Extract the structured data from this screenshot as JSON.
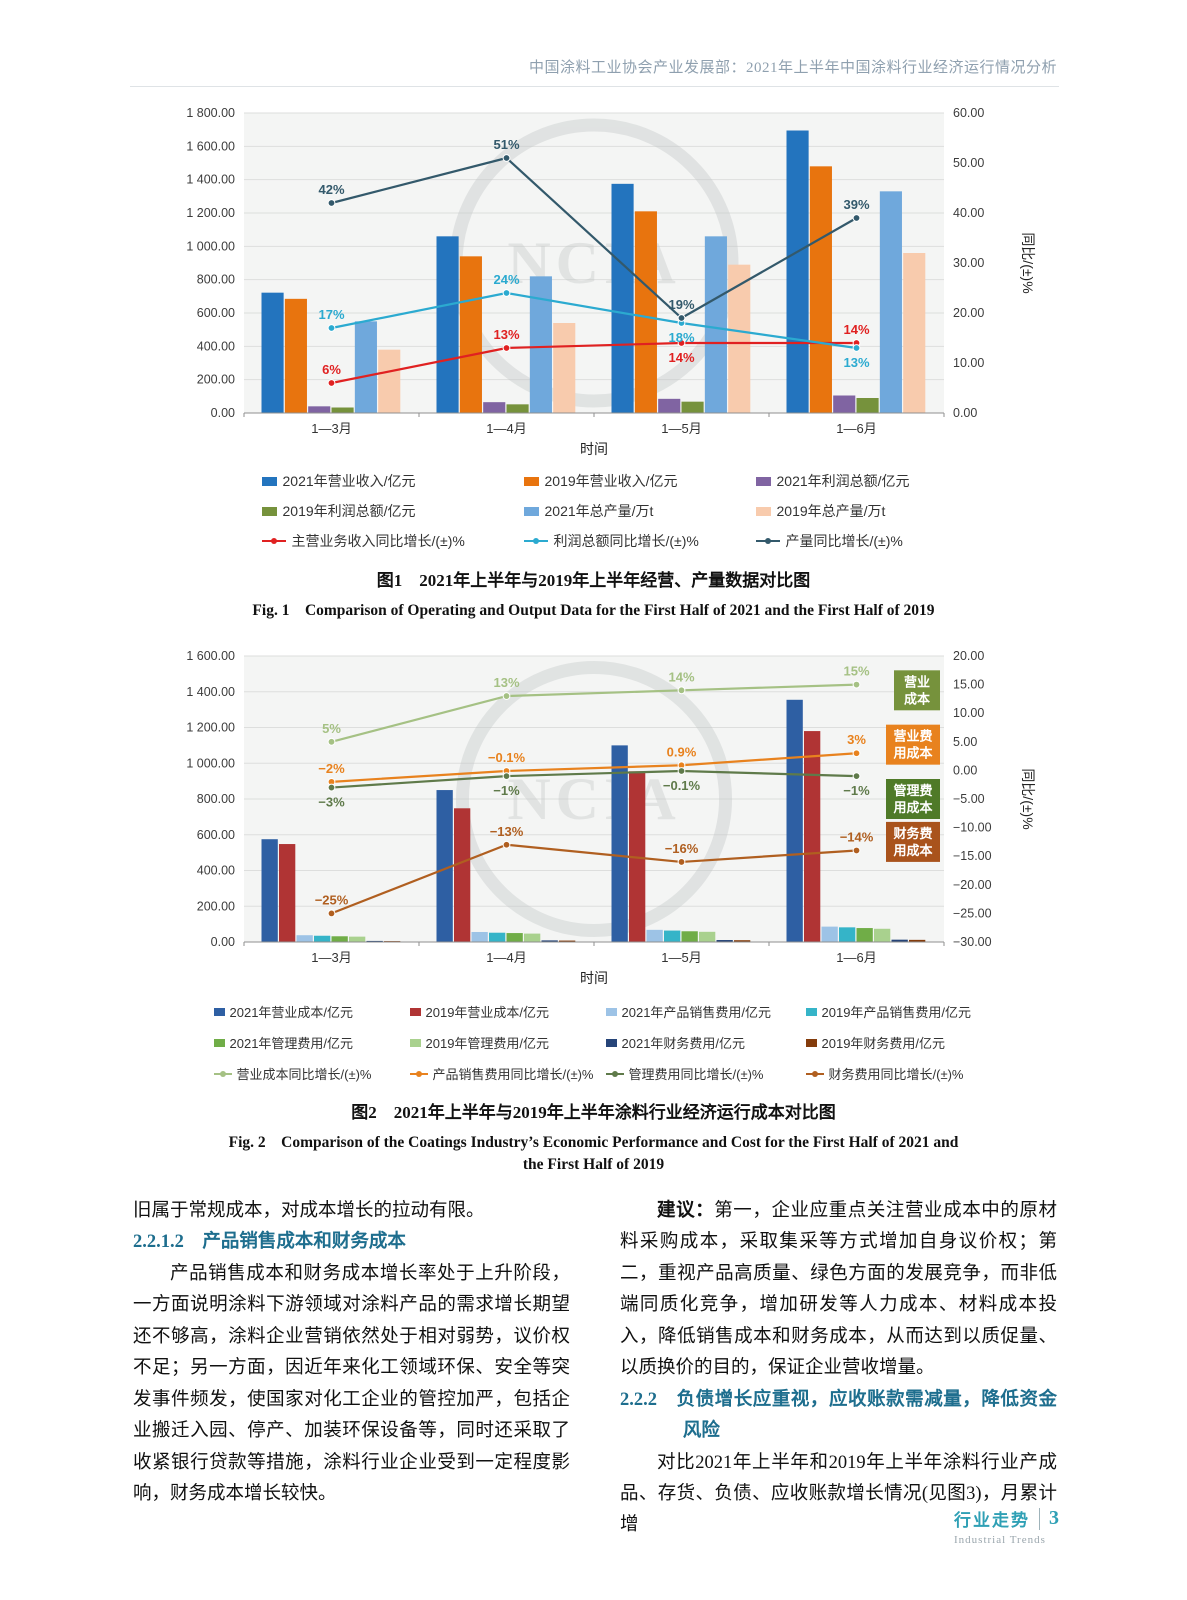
{
  "header": {
    "title": "中国涂料工业协会产业发展部：2021年上半年中国涂料行业经济运行情况分析"
  },
  "fig1": {
    "caption_zh": "图1　2021年上半年与2019年上半年经营、产量数据对比图",
    "caption_en": "Fig. 1　Comparison of Operating and Output Data for the First Half of 2021 and the First Half of 2019"
  },
  "fig2": {
    "caption_zh": "图2　2021年上半年与2019年上半年涂料行业经济运行成本对比图",
    "caption_en_line1": "Fig. 2　Comparison of the Coatings Industry’s Economic Performance and Cost for the First Half of 2021 and",
    "caption_en_line2": "the First Half of 2019"
  },
  "chart_data": [
    {
      "type": "combo-bar-line",
      "title": "图1 2021年上半年与2019年上半年经营、产量数据对比图",
      "categories": [
        "1—3月",
        "1—4月",
        "1—5月",
        "1—6月"
      ],
      "x_axis_label": "时间",
      "right_axis_label": "同比/(±)%",
      "left_axis": {
        "min": 0,
        "max": 1800,
        "step": 200
      },
      "right_axis": {
        "min": 0,
        "max": 60,
        "step": 10
      },
      "grid": true,
      "legend_position": "bottom",
      "watermark": "NCIA",
      "bar_series": [
        {
          "name": "2021年营业收入/亿元",
          "color": "#2374be",
          "values": [
            722,
            1060,
            1375,
            1695
          ]
        },
        {
          "name": "2019年营业收入/亿元",
          "color": "#e8740e",
          "values": [
            685,
            940,
            1210,
            1480
          ]
        },
        {
          "name": "2021年利润总额/亿元",
          "color": "#8064a2",
          "values": [
            40,
            65,
            85,
            105
          ]
        },
        {
          "name": "2019年利润总额/亿元",
          "color": "#76923c",
          "values": [
            33,
            52,
            68,
            90
          ]
        },
        {
          "name": "2021年总产量/万t",
          "color": "#6fa8dc",
          "values": [
            550,
            820,
            1060,
            1330
          ]
        },
        {
          "name": "2019年总产量/万t",
          "color": "#f8cbad",
          "values": [
            380,
            540,
            890,
            960
          ]
        }
      ],
      "line_series": [
        {
          "name": "主营业务收入同比增长/(±)%",
          "color": "#e02121",
          "values": [
            6,
            13,
            14,
            14
          ],
          "labels": [
            "6%",
            "13%",
            "14%",
            "14%"
          ],
          "label_sides": [
            "above",
            "above",
            "below",
            "above"
          ]
        },
        {
          "name": "利润总额同比增长/(±)%",
          "color": "#2baad0",
          "values": [
            17,
            24,
            18,
            13
          ],
          "labels": [
            "17%",
            "24%",
            "18%",
            "13%"
          ],
          "label_sides": [
            "above",
            "above",
            "below",
            "below"
          ]
        },
        {
          "name": "产量同比增长/(±)%",
          "color": "#33596b",
          "values": [
            42,
            51,
            19,
            39
          ],
          "labels": [
            "42%",
            "51%",
            "19%",
            "39%"
          ],
          "label_sides": [
            "above",
            "above",
            "above",
            "above"
          ]
        }
      ]
    },
    {
      "type": "combo-bar-line",
      "title": "图2 2021年上半年与2019年上半年涂料行业经济运行成本对比图",
      "categories": [
        "1—3月",
        "1—4月",
        "1—5月",
        "1—6月"
      ],
      "x_axis_label": "时间",
      "right_axis_label": "同比/(±)%",
      "left_axis": {
        "min": 0,
        "max": 1600,
        "step": 200
      },
      "right_axis": {
        "min": -30,
        "max": 20,
        "step": 5
      },
      "grid": true,
      "legend_position": "bottom",
      "watermark": "NCIA",
      "bar_series": [
        {
          "name": "2021年营业成本/亿元",
          "color": "#2e5fa3",
          "values": [
            575,
            850,
            1100,
            1355
          ]
        },
        {
          "name": "2019年营业成本/亿元",
          "color": "#b03434",
          "values": [
            548,
            748,
            955,
            1180
          ]
        },
        {
          "name": "2021年产品销售费用/亿元",
          "color": "#9dc3e6",
          "values": [
            38,
            56,
            68,
            86
          ]
        },
        {
          "name": "2019年产品销售费用/亿元",
          "color": "#35b4c8",
          "values": [
            35,
            52,
            64,
            82
          ]
        },
        {
          "name": "2021年管理费用/亿元",
          "color": "#70ad47",
          "values": [
            32,
            50,
            60,
            78
          ]
        },
        {
          "name": "2019年管理费用/亿元",
          "color": "#a9d18e",
          "values": [
            30,
            47,
            57,
            74
          ]
        },
        {
          "name": "2021年财务费用/亿元",
          "color": "#264478",
          "values": [
            6,
            9,
            11,
            13
          ]
        },
        {
          "name": "2019年财务费用/亿元",
          "color": "#843c0c",
          "values": [
            5,
            8,
            10,
            12
          ]
        }
      ],
      "line_series": [
        {
          "name": "营业成本同比增长/(±)%",
          "color": "#a5c184",
          "values": [
            5,
            13,
            14,
            15
          ],
          "labels": [
            "5%",
            "13%",
            "14%",
            "15%"
          ],
          "label_sides": [
            "above",
            "above",
            "above",
            "above"
          ]
        },
        {
          "name": "产品销售费用同比增长/(±)%",
          "color": "#e8821e",
          "values": [
            -2,
            -0.1,
            0.9,
            3
          ],
          "labels": [
            "−2%",
            "−0.1%",
            "0.9%",
            "3%"
          ],
          "label_sides": [
            "above",
            "above",
            "above",
            "above"
          ]
        },
        {
          "name": "管理费用同比增长/(±)%",
          "color": "#5f7a4a",
          "values": [
            -3,
            -1,
            -0.1,
            -1
          ],
          "labels": [
            "−3%",
            "−1%",
            "−0.1%",
            "−1%"
          ],
          "label_sides": [
            "below",
            "below",
            "below",
            "below"
          ]
        },
        {
          "name": "财务费用同比增长/(±)%",
          "color": "#b05f20",
          "values": [
            -25,
            -13,
            -16,
            -14
          ],
          "labels": [
            "−25%",
            "−13%",
            "−16%",
            "−14%"
          ],
          "label_sides": [
            "above",
            "above",
            "above",
            "above"
          ]
        }
      ],
      "annotations": [
        {
          "lines": [
            "营业",
            "成本"
          ],
          "color": "#76923c",
          "at": 14
        },
        {
          "lines": [
            "营业费",
            "用成本"
          ],
          "color": "#e8821e",
          "at": 4.5
        },
        {
          "lines": [
            "管理费",
            "用成本"
          ],
          "color": "#4f7a28",
          "at": -5
        },
        {
          "lines": [
            "财务费",
            "用成本"
          ],
          "color": "#a9531c",
          "at": -12.5
        }
      ]
    }
  ],
  "body": {
    "left": {
      "cont": "旧属于常规成本，对成本增长的拉动有限。",
      "heading": "2.2.1.2　产品销售成本和财务成本",
      "para": "产品销售成本和财务成本增长率处于上升阶段，一方面说明涂料下游领域对涂料产品的需求增长期望还不够高，涂料企业营销依然处于相对弱势，议价权不足；另一方面，因近年来化工领域环保、安全等突发事件频发，使国家对化工企业的管控加严，包括企业搬迁入园、停产、加装环保设备等，同时还采取了收紧银行贷款等措施，涂料行业企业受到一定程度影响，财务成本增长较快。"
    },
    "right": {
      "advice_lead": "建议：",
      "advice_text": "第一，企业应重点关注营业成本中的原材料采购成本，采取集采等方式增加自身议价权；第二，重视产品高质量、绿色方面的发展竞争，而非低端同质化竞争，增加研发等人力成本、材料成本投入，降低销售成本和财务成本，从而达到以质促量、以质换价的目的，保证企业营收增量。",
      "heading": "2.2.2　负债增长应重视，应收账款需减量，降低资金风险",
      "para": "对比2021年上半年和2019年上半年涂料行业产成品、存货、负债、应收账款增长情况(见图3)，月累计增"
    }
  },
  "footer": {
    "zh": "行业走势",
    "page": "3",
    "en": "Industrial Trends"
  }
}
